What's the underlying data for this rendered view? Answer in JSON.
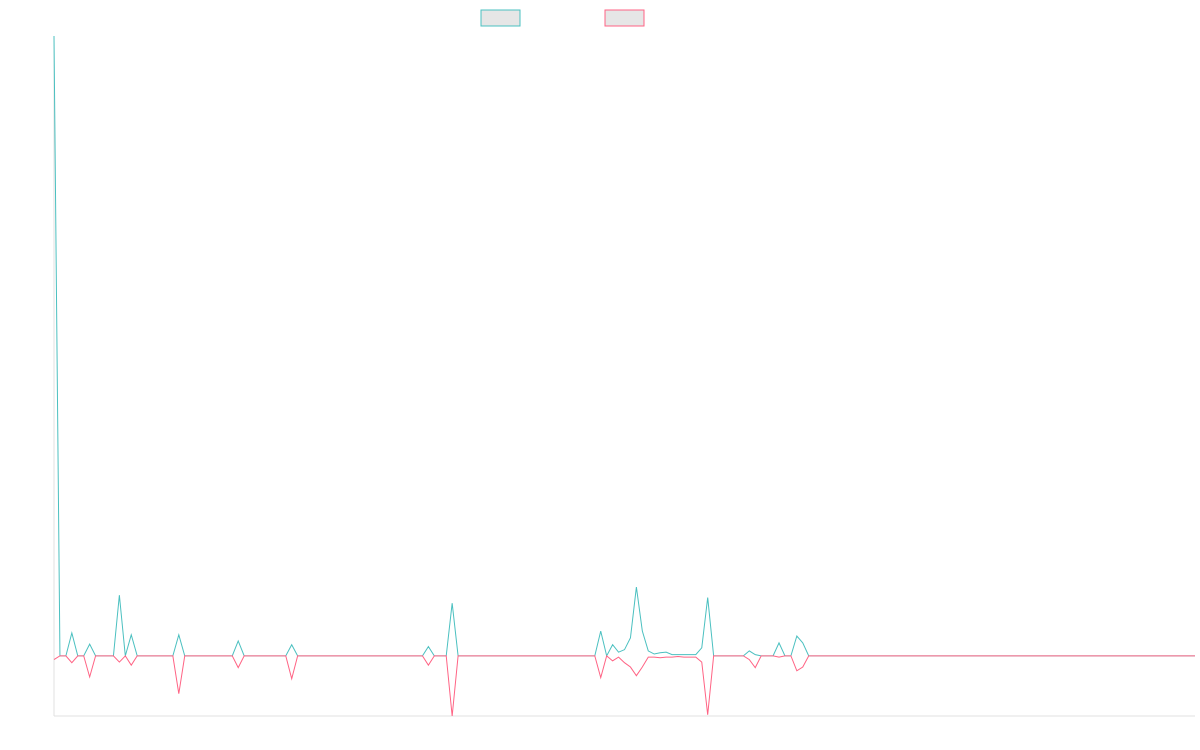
{
  "chart_data": {
    "type": "line",
    "ylim": [
      -9.7,
      100
    ],
    "series": [
      {
        "color": "#4bc0c0",
        "values": [
          100,
          0,
          0,
          3.7,
          0,
          0,
          1.9,
          0,
          0,
          0,
          0,
          9.8,
          0,
          3.4,
          0,
          0,
          0,
          0,
          0,
          0,
          0,
          3.4,
          0,
          0,
          0,
          0,
          0,
          0,
          0,
          0,
          0,
          2.4,
          0,
          0,
          0,
          0,
          0,
          0,
          0,
          0,
          1.8,
          0,
          0,
          0,
          0,
          0,
          0,
          0,
          0,
          0,
          0,
          0,
          0,
          0,
          0,
          0,
          0,
          0,
          0,
          0,
          0,
          0,
          0,
          1.5,
          0,
          0,
          0,
          8.5,
          0,
          0,
          0,
          0,
          0,
          0,
          0,
          0,
          0,
          0,
          0,
          0,
          0,
          0,
          0,
          0,
          0,
          0,
          0,
          0,
          0,
          0,
          0,
          0,
          4.0,
          0,
          1.8,
          0.6,
          1.0,
          2.9,
          11.1,
          4.0,
          0.8,
          0.3,
          0.5,
          0.6,
          0.2,
          0.2,
          0.2,
          0.2,
          0.2,
          1.3,
          9.4,
          0,
          0,
          0,
          0,
          0,
          0,
          0.8,
          0.2,
          0,
          0,
          0,
          2.1,
          0,
          0,
          3.2,
          2.1,
          0,
          0,
          0,
          0,
          0,
          0,
          0,
          0,
          0,
          0,
          0,
          0,
          0,
          0,
          0,
          0,
          0,
          0,
          0,
          0,
          0,
          0,
          0,
          0,
          0,
          0,
          0,
          0,
          0,
          0,
          0,
          0,
          0,
          0,
          0,
          0,
          0,
          0,
          0,
          0,
          0,
          0,
          0,
          0,
          0,
          0,
          0,
          0,
          0,
          0,
          0,
          0,
          0,
          0,
          0,
          0,
          0,
          0,
          0,
          0,
          0,
          0,
          0,
          0,
          0,
          0
        ]
      },
      {
        "color": "#ff6384",
        "values": [
          -0.6,
          0,
          0,
          -1.1,
          0,
          0,
          -3.4,
          0,
          0,
          0,
          0,
          -1.0,
          0,
          -1.5,
          0,
          0,
          0,
          0,
          0,
          0,
          0,
          -6.1,
          0,
          0,
          0,
          0,
          0,
          0,
          0,
          0,
          0,
          -1.9,
          0,
          0,
          0,
          0,
          0,
          0,
          0,
          0,
          -3.7,
          0,
          0,
          0,
          0,
          0,
          0,
          0,
          0,
          0,
          0,
          0,
          0,
          0,
          0,
          0,
          0,
          0,
          0,
          0,
          0,
          0,
          0,
          -1.5,
          0,
          0,
          0,
          -9.7,
          0,
          0,
          0,
          0,
          0,
          0,
          0,
          0,
          0,
          0,
          0,
          0,
          0,
          0,
          0,
          0,
          0,
          0,
          0,
          0,
          0,
          0,
          0,
          0,
          -3.5,
          0,
          -0.8,
          -0.2,
          -1.1,
          -1.8,
          -3.2,
          -1.8,
          -0.2,
          -0.2,
          -0.3,
          -0.2,
          -0.2,
          -0.1,
          -0.2,
          -0.2,
          -0.2,
          -1.0,
          -9.5,
          0,
          0,
          0,
          0,
          0,
          0,
          -0.6,
          -1.9,
          0,
          0,
          0,
          -0.2,
          0,
          0,
          -2.4,
          -1.8,
          0,
          0,
          0,
          0,
          0,
          0,
          0,
          0,
          0,
          0,
          0,
          0,
          0,
          0,
          0,
          0,
          0,
          0,
          0,
          0,
          0,
          0,
          0,
          0,
          0,
          0,
          0,
          0,
          0,
          0,
          0,
          0,
          0,
          0,
          0,
          0,
          0,
          0,
          0,
          0,
          0,
          0,
          0,
          0,
          0,
          0,
          0,
          0,
          0,
          0,
          0,
          0,
          0,
          0,
          0,
          0,
          0,
          0,
          0,
          0,
          0,
          0,
          0,
          0,
          0,
          0
        ]
      }
    ]
  }
}
